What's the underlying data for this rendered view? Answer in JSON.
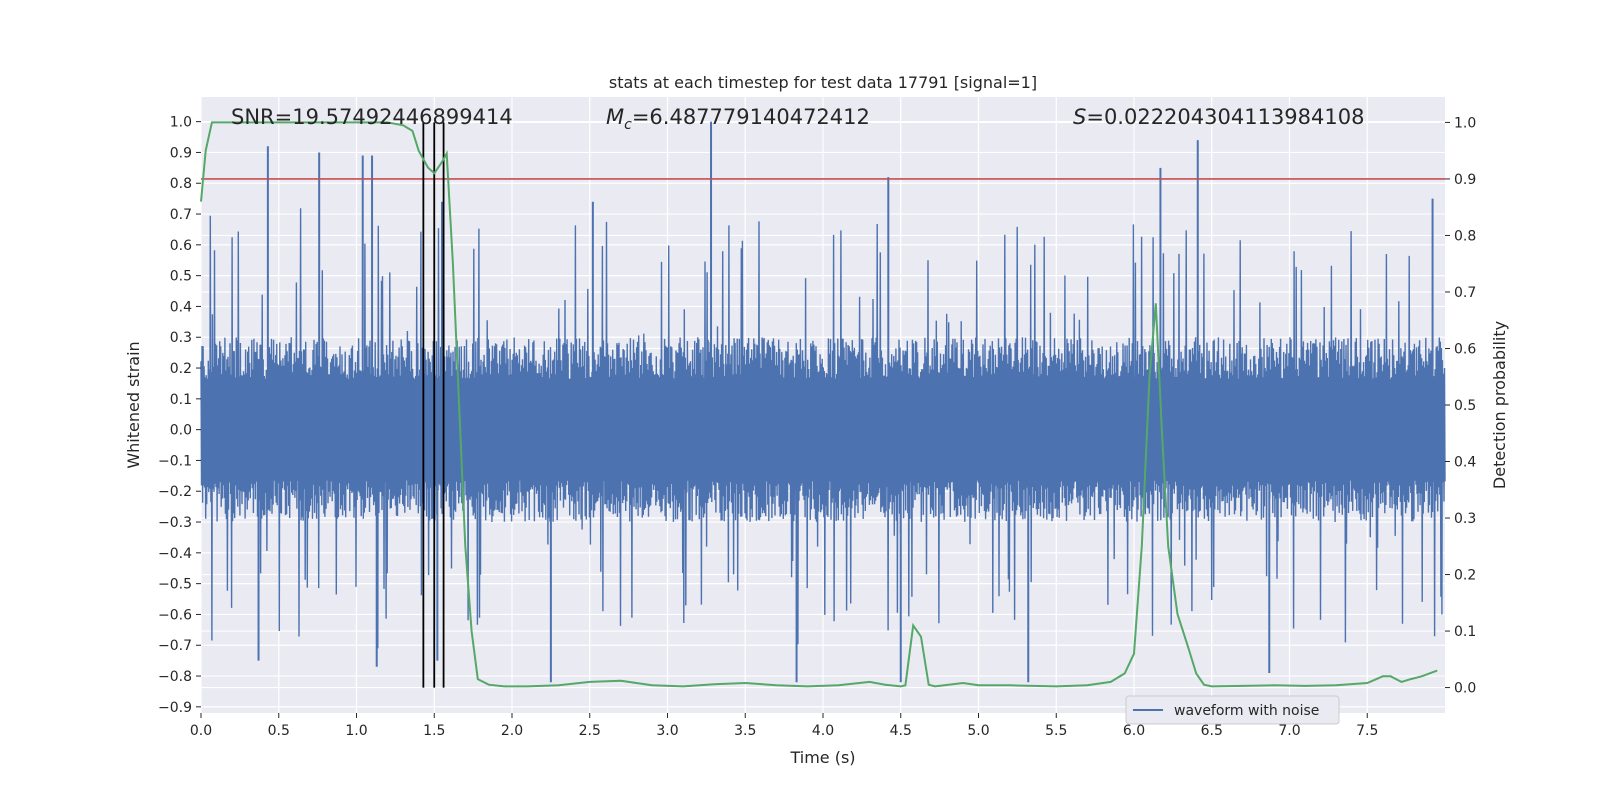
{
  "chart_data": {
    "type": "line",
    "title": "stats at each timestep for test data 17791 [signal=1]",
    "xlabel": "Time (s)",
    "ylabel": "Whitened strain",
    "y2label": "Detection probability",
    "xlim": [
      0.0,
      8.0
    ],
    "ylim": [
      -0.92,
      1.08
    ],
    "y2lim": [
      -0.045,
      1.045
    ],
    "x_ticks": [
      "0.0",
      "0.5",
      "1.0",
      "1.5",
      "2.0",
      "2.5",
      "3.0",
      "3.5",
      "4.0",
      "4.5",
      "5.0",
      "5.5",
      "6.0",
      "6.5",
      "7.0",
      "7.5"
    ],
    "y_ticks": [
      "1.0",
      "0.9",
      "0.8",
      "0.7",
      "0.6",
      "0.5",
      "0.4",
      "0.3",
      "0.2",
      "0.1",
      "0.0",
      "−0.1",
      "−0.2",
      "−0.3",
      "−0.4",
      "−0.5",
      "−0.6",
      "−0.7",
      "−0.8",
      "−0.9"
    ],
    "y2_ticks": [
      "1.0",
      "0.9",
      "0.8",
      "0.7",
      "0.6",
      "0.5",
      "0.4",
      "0.3",
      "0.2",
      "0.1",
      "0.0"
    ],
    "annotations": {
      "snr": "SNR=19.57492446899414",
      "mc_symbol": "M",
      "mc_sub": "c",
      "mc_value": "=6.487779140472412",
      "s_symbol": "S",
      "s_value": "=0.022204304113984108"
    },
    "legend": {
      "label": "waveform with noise",
      "placement": "lower-right"
    },
    "grid": true,
    "threshold_probability": 0.9,
    "event_lines_x": [
      1.43,
      1.5,
      1.56
    ],
    "waveform": {
      "name": "waveform with noise",
      "color": "#4c72b0",
      "typical_envelope": 0.3,
      "peaks": [
        {
          "x": 0.43,
          "y": 0.92
        },
        {
          "x": 0.76,
          "y": 0.9
        },
        {
          "x": 1.04,
          "y": 0.89
        },
        {
          "x": 1.1,
          "y": 0.89
        },
        {
          "x": 1.55,
          "y": 0.74
        },
        {
          "x": 2.52,
          "y": 0.74
        },
        {
          "x": 3.28,
          "y": 1.0
        },
        {
          "x": 4.42,
          "y": 0.82
        },
        {
          "x": 6.17,
          "y": 0.85
        },
        {
          "x": 6.41,
          "y": 0.94
        },
        {
          "x": 7.92,
          "y": 0.75
        }
      ],
      "troughs": [
        {
          "x": 0.37,
          "y": -0.75
        },
        {
          "x": 1.13,
          "y": -0.77
        },
        {
          "x": 1.52,
          "y": -0.75
        },
        {
          "x": 2.25,
          "y": -0.82
        },
        {
          "x": 3.83,
          "y": -0.82
        },
        {
          "x": 4.5,
          "y": -0.82
        },
        {
          "x": 5.32,
          "y": -0.82
        },
        {
          "x": 6.87,
          "y": -0.79
        }
      ]
    },
    "probability": {
      "color": "#55a868",
      "x": [
        0.0,
        0.03,
        0.07,
        0.15,
        0.3,
        0.6,
        1.0,
        1.2,
        1.3,
        1.36,
        1.4,
        1.46,
        1.5,
        1.55,
        1.58,
        1.62,
        1.66,
        1.7,
        1.74,
        1.78,
        1.85,
        1.95,
        2.1,
        2.3,
        2.5,
        2.7,
        2.8,
        2.9,
        3.1,
        3.3,
        3.5,
        3.7,
        3.9,
        4.1,
        4.3,
        4.4,
        4.5,
        4.53,
        4.58,
        4.63,
        4.68,
        4.72,
        4.78,
        4.9,
        5.0,
        5.2,
        5.5,
        5.7,
        5.85,
        5.94,
        6.0,
        6.05,
        6.1,
        6.14,
        6.18,
        6.22,
        6.28,
        6.35,
        6.4,
        6.45,
        6.5,
        6.7,
        6.9,
        7.1,
        7.3,
        7.5,
        7.6,
        7.65,
        7.72,
        7.78,
        7.85,
        7.95
      ],
      "y": [
        0.86,
        0.95,
        1.0,
        1.0,
        1.0,
        1.0,
        1.0,
        1.0,
        0.995,
        0.985,
        0.95,
        0.92,
        0.91,
        0.93,
        0.945,
        0.75,
        0.5,
        0.25,
        0.1,
        0.015,
        0.005,
        0.002,
        0.002,
        0.004,
        0.01,
        0.012,
        0.008,
        0.004,
        0.002,
        0.006,
        0.008,
        0.004,
        0.002,
        0.004,
        0.01,
        0.005,
        0.002,
        0.004,
        0.11,
        0.09,
        0.005,
        0.002,
        0.004,
        0.008,
        0.004,
        0.004,
        0.002,
        0.004,
        0.01,
        0.025,
        0.06,
        0.25,
        0.55,
        0.68,
        0.45,
        0.25,
        0.13,
        0.07,
        0.025,
        0.005,
        0.002,
        0.003,
        0.004,
        0.003,
        0.004,
        0.008,
        0.02,
        0.02,
        0.01,
        0.015,
        0.02,
        0.03
      ]
    }
  }
}
